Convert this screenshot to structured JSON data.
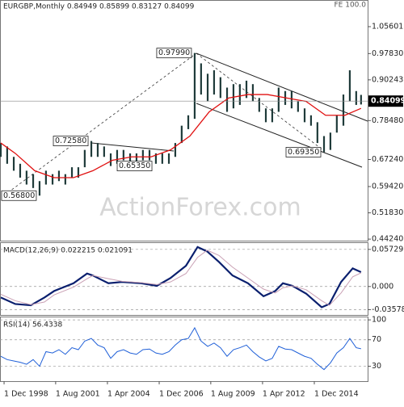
{
  "chart_data": [
    {
      "type": "range_bar",
      "title": "EURGBP,Monthly  0.84949 0.85899 0.83127 0.84099",
      "corner_note": "FE 100.0",
      "watermark": "ActionForex.com",
      "color": "#1f3b3a",
      "x": [
        1998.75,
        1999.08,
        1999.42,
        1999.75,
        2000.08,
        2000.42,
        2000.75,
        2001.08,
        2001.42,
        2001.75,
        2002.08,
        2002.42,
        2002.75,
        2003.08,
        2003.42,
        2003.75,
        2004.08,
        2004.42,
        2004.75,
        2005.08,
        2005.42,
        2005.75,
        2006.08,
        2006.42,
        2006.75,
        2007.08,
        2007.42,
        2007.75,
        2008.08,
        2008.42,
        2008.75,
        2009.08,
        2009.42,
        2009.75,
        2010.08,
        2010.42,
        2010.75,
        2011.08,
        2011.42,
        2011.75,
        2012.08,
        2012.42,
        2012.75,
        2013.08,
        2013.42,
        2013.75,
        2014.08,
        2014.42,
        2014.75,
        2015.08,
        2015.42,
        2015.75,
        2016.08,
        2016.42,
        2016.75,
        2017.08,
        2017.33
      ],
      "high": [
        0.72,
        0.71,
        0.68,
        0.66,
        0.64,
        0.63,
        0.61,
        0.64,
        0.63,
        0.64,
        0.63,
        0.65,
        0.65,
        0.7,
        0.7258,
        0.72,
        0.71,
        0.69,
        0.7,
        0.7,
        0.69,
        0.69,
        0.7,
        0.7,
        0.69,
        0.69,
        0.69,
        0.72,
        0.77,
        0.8,
        0.9799,
        0.95,
        0.92,
        0.93,
        0.91,
        0.88,
        0.89,
        0.89,
        0.9,
        0.89,
        0.85,
        0.82,
        0.82,
        0.88,
        0.87,
        0.87,
        0.84,
        0.82,
        0.8,
        0.78,
        0.74,
        0.75,
        0.8,
        0.86,
        0.93,
        0.87,
        0.85899
      ],
      "low": [
        0.68,
        0.66,
        0.64,
        0.62,
        0.6,
        0.59,
        0.568,
        0.6,
        0.6,
        0.61,
        0.6,
        0.62,
        0.62,
        0.65,
        0.68,
        0.68,
        0.68,
        0.6535,
        0.66,
        0.67,
        0.66,
        0.66,
        0.67,
        0.67,
        0.66,
        0.66,
        0.66,
        0.68,
        0.72,
        0.76,
        0.79,
        0.86,
        0.84,
        0.86,
        0.85,
        0.81,
        0.82,
        0.83,
        0.85,
        0.84,
        0.81,
        0.78,
        0.78,
        0.81,
        0.83,
        0.82,
        0.81,
        0.78,
        0.77,
        0.72,
        0.6935,
        0.7,
        0.75,
        0.77,
        0.84,
        0.83,
        0.83127
      ],
      "ma": {
        "color": "#e01010",
        "x": [
          1998.75,
          1999.5,
          2000.5,
          2001.5,
          2002.5,
          2003.5,
          2004.5,
          2005.5,
          2006.5,
          2007.5,
          2008.5,
          2009.5,
          2010.5,
          2011.5,
          2012.5,
          2013.5,
          2014.5,
          2015.5,
          2016.5,
          2017.33
        ],
        "values": [
          0.72,
          0.69,
          0.64,
          0.62,
          0.62,
          0.64,
          0.67,
          0.68,
          0.68,
          0.7,
          0.74,
          0.81,
          0.85,
          0.86,
          0.86,
          0.85,
          0.84,
          0.8,
          0.8,
          0.82
        ]
      },
      "last": 0.84099,
      "annotations": [
        {
          "x": 2008.75,
          "value": 0.9799,
          "label": "0.97990"
        },
        {
          "x": 2003.42,
          "value": 0.7258,
          "label": "0.72580"
        },
        {
          "x": 2004.42,
          "value": 0.6535,
          "label": "0.65350"
        },
        {
          "x": 2015.42,
          "value": 0.6935,
          "label": "0.69350"
        },
        {
          "x": 2000.75,
          "value": 0.568,
          "label": "0.56800"
        }
      ],
      "xlim": [
        1998.71,
        2017.67
      ],
      "ylim": [
        0.438,
        1.133
      ],
      "yticks": [
        1.05601,
        {
          "value": 0.9783,
          "label": "0.97830"
        },
        0.90243,
        {
          "value": 0.7848,
          "label": "0.78480"
        },
        {
          "value": 0.6724,
          "label": "0.67240"
        },
        {
          "value": 0.5942,
          "label": "0.59420"
        },
        {
          "value": 0.5183,
          "label": "0.51830"
        },
        {
          "value": 0.4424,
          "label": "0.44240"
        }
      ]
    },
    {
      "type": "line",
      "title": "MACD(12,26,9) 0.022215 0.021091",
      "x": [
        1998.75,
        1999.5,
        2000.3,
        2001,
        2001.5,
        2002.5,
        2003.2,
        2003.5,
        2004.3,
        2005,
        2006,
        2006.8,
        2007.5,
        2008.3,
        2008.9,
        2009.4,
        2010,
        2010.7,
        2011.5,
        2012.3,
        2012.9,
        2013.3,
        2013.8,
        2014.5,
        2015.3,
        2015.7,
        2016.3,
        2016.9,
        2017.33
      ],
      "series": [
        {
          "color": "#0a1f6e",
          "values": [
            -0.017,
            -0.027,
            -0.029,
            -0.017,
            -0.007,
            0.005,
            0.02,
            0.017,
            0.005,
            0.007,
            0.005,
            0.001,
            0.013,
            0.032,
            0.061,
            0.054,
            0.038,
            0.017,
            0.005,
            -0.015,
            -0.007,
            0.005,
            0.001,
            -0.011,
            -0.032,
            -0.027,
            0.007,
            0.028,
            0.022215
          ]
        },
        {
          "color": "#c9a0b4",
          "values": [
            -0.012,
            -0.022,
            -0.028,
            -0.024,
            -0.013,
            -0.001,
            0.012,
            0.017,
            0.012,
            0.008,
            0.006,
            0.003,
            0.007,
            0.02,
            0.045,
            0.056,
            0.048,
            0.03,
            0.013,
            -0.004,
            -0.01,
            -0.002,
            0.001,
            -0.005,
            -0.022,
            -0.029,
            -0.01,
            0.015,
            0.021091
          ]
        }
      ],
      "xlim": [
        1998.71,
        2017.67
      ],
      "ylim": [
        -0.0439,
        0.0683
      ],
      "yticks": [
        0.057295,
        {
          "value": 0,
          "label": "0.000"
        },
        -0.035781
      ]
    },
    {
      "type": "line",
      "title": "RSI(14) 56.4338",
      "x": [
        1998.75,
        1999.08,
        1999.42,
        1999.75,
        2000.08,
        2000.42,
        2000.75,
        2001.08,
        2001.42,
        2001.75,
        2002.08,
        2002.42,
        2002.75,
        2003.08,
        2003.42,
        2003.75,
        2004.08,
        2004.42,
        2004.75,
        2005.08,
        2005.42,
        2005.75,
        2006.08,
        2006.42,
        2006.75,
        2007.08,
        2007.42,
        2007.75,
        2008.08,
        2008.42,
        2008.75,
        2009.08,
        2009.42,
        2009.75,
        2010.08,
        2010.42,
        2010.75,
        2011.08,
        2011.42,
        2011.75,
        2012.08,
        2012.42,
        2012.75,
        2013.08,
        2013.42,
        2013.75,
        2014.08,
        2014.42,
        2014.75,
        2015.08,
        2015.42,
        2015.75,
        2016.08,
        2016.42,
        2016.75,
        2017.08,
        2017.33
      ],
      "series": [
        {
          "color": "#2060d8",
          "values": [
            45,
            40,
            38,
            36,
            33,
            40,
            30,
            52,
            50,
            55,
            48,
            58,
            55,
            68,
            72,
            62,
            58,
            42,
            52,
            55,
            50,
            48,
            55,
            56,
            50,
            48,
            52,
            62,
            70,
            72,
            88,
            68,
            60,
            65,
            58,
            45,
            55,
            58,
            62,
            52,
            44,
            38,
            42,
            60,
            56,
            55,
            50,
            45,
            42,
            33,
            25,
            35,
            50,
            58,
            72,
            58,
            56.4338
          ]
        }
      ],
      "xlim": [
        1998.71,
        2017.67
      ],
      "ylim": [
        7.5,
        105
      ],
      "yticks": [
        100,
        70,
        30
      ],
      "xticks": [
        {
          "value": 1998.92,
          "label": "1 Dec 1998"
        },
        {
          "value": 2001.58,
          "label": "1 Aug 2001"
        },
        {
          "value": 2004.25,
          "label": "1 Apr 2004"
        },
        {
          "value": 2006.92,
          "label": "1 Dec 2006"
        },
        {
          "value": 2009.58,
          "label": "1 Aug 2009"
        },
        {
          "value": 2012.25,
          "label": "1 Apr 2012"
        },
        {
          "value": 2014.92,
          "label": "1 Dec 2014"
        }
      ]
    }
  ]
}
